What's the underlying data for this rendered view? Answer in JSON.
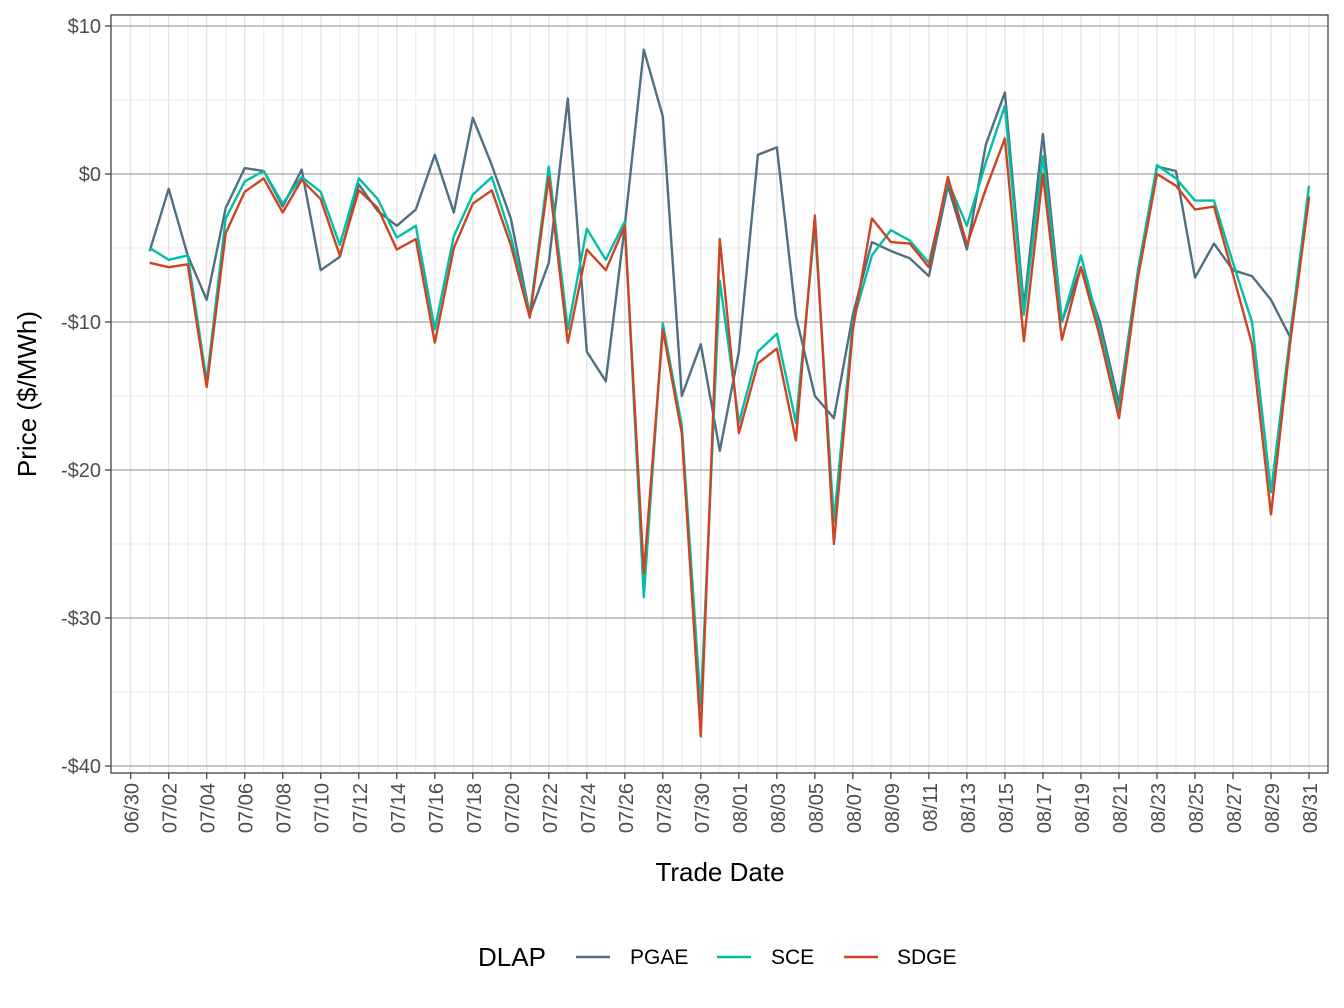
{
  "chart_data": {
    "type": "line",
    "title": "",
    "xlabel": "Trade Date",
    "ylabel": "Price ($/MWh)",
    "ylim": [
      -40,
      10
    ],
    "y_ticks": [
      10,
      0,
      -10,
      -20,
      -30,
      -40
    ],
    "y_tick_labels": [
      "$10",
      "$0",
      "-$10",
      "-$20",
      "-$30",
      "-$40"
    ],
    "x_ticks": [
      "06/30",
      "07/02",
      "07/04",
      "07/06",
      "07/08",
      "07/10",
      "07/12",
      "07/14",
      "07/16",
      "07/18",
      "07/20",
      "07/22",
      "07/24",
      "07/26",
      "07/28",
      "07/30",
      "08/01",
      "08/03",
      "08/05",
      "08/07",
      "08/09",
      "08/11",
      "08/13",
      "08/15",
      "08/17",
      "08/19",
      "08/21",
      "08/23",
      "08/25",
      "08/27",
      "08/29",
      "08/31"
    ],
    "x_start": "06/30",
    "grid": true,
    "legend": {
      "title": "DLAP",
      "position": "bottom"
    },
    "dates": [
      "07/01",
      "07/02",
      "07/03",
      "07/04",
      "07/05",
      "07/06",
      "07/07",
      "07/08",
      "07/09",
      "07/10",
      "07/11",
      "07/12",
      "07/13",
      "07/14",
      "07/15",
      "07/16",
      "07/17",
      "07/18",
      "07/19",
      "07/20",
      "07/21",
      "07/22",
      "07/23",
      "07/24",
      "07/25",
      "07/26",
      "07/27",
      "07/28",
      "07/29",
      "07/30",
      "07/31",
      "08/01",
      "08/02",
      "08/03",
      "08/04",
      "08/05",
      "08/06",
      "08/07",
      "08/08",
      "08/09",
      "08/10",
      "08/11",
      "08/12",
      "08/13",
      "08/14",
      "08/15",
      "08/16",
      "08/17",
      "08/18",
      "08/19",
      "08/20",
      "08/21",
      "08/22",
      "08/23",
      "08/24",
      "08/25",
      "08/26",
      "08/27",
      "08/28",
      "08/29",
      "08/30",
      "08/31"
    ],
    "series": [
      {
        "name": "PGAE",
        "color": "#4e7080",
        "values": [
          -5.2,
          -1.0,
          -5.5,
          -8.5,
          -2.3,
          0.4,
          0.2,
          -2.2,
          0.3,
          -6.5,
          -5.6,
          -0.7,
          -2.5,
          -3.5,
          -2.4,
          1.3,
          -2.6,
          3.8,
          0.6,
          -3.0,
          -9.5,
          -6.0,
          5.1,
          -12.0,
          -14.0,
          -3.5,
          8.4,
          3.9,
          -15.0,
          -11.5,
          -18.7,
          -12.0,
          1.3,
          1.8,
          -9.6,
          -15.0,
          -16.5,
          -9.5,
          -4.6,
          -5.2,
          -5.7,
          -6.9,
          -0.8,
          -5.1,
          2.0,
          5.5,
          -9.0,
          2.7,
          -10.0,
          -6.3,
          -10.0,
          -15.5,
          -6.5,
          0.5,
          0.2,
          -7.0,
          -4.7,
          -6.5,
          -6.9,
          -8.5,
          -11.0,
          -1.5
        ]
      },
      {
        "name": "SCE",
        "color": "#00bfa8",
        "values": [
          -5.0,
          -5.8,
          -5.5,
          -14.0,
          -3.0,
          -0.5,
          0.2,
          -2.0,
          -0.2,
          -1.2,
          -4.8,
          -0.3,
          -1.7,
          -4.3,
          -3.5,
          -10.5,
          -4.2,
          -1.4,
          -0.2,
          -4.2,
          -9.5,
          0.5,
          -10.5,
          -3.7,
          -5.8,
          -3.2,
          -28.6,
          -10.1,
          -17.0,
          -36.0,
          -7.2,
          -16.8,
          -12.0,
          -10.8,
          -16.8,
          -3.5,
          -23.5,
          -10.0,
          -5.5,
          -3.8,
          -4.5,
          -6.0,
          -0.5,
          -3.5,
          0.8,
          4.6,
          -9.5,
          1.2,
          -10.0,
          -5.5,
          -10.5,
          -16.0,
          -6.5,
          0.6,
          -0.3,
          -1.8,
          -1.8,
          -6.0,
          -10.0,
          -21.5,
          -11.0,
          -0.8
        ]
      },
      {
        "name": "SDGE",
        "color": "#cc4422",
        "values": [
          -6.0,
          -6.3,
          -6.1,
          -14.4,
          -4.0,
          -1.2,
          -0.3,
          -2.6,
          -0.4,
          -1.7,
          -5.5,
          -1.1,
          -2.3,
          -5.1,
          -4.4,
          -11.4,
          -5.0,
          -2.0,
          -1.1,
          -4.8,
          -9.7,
          -0.2,
          -11.4,
          -5.1,
          -6.5,
          -3.5,
          -27.0,
          -10.5,
          -17.5,
          -38.0,
          -4.4,
          -17.5,
          -12.8,
          -11.8,
          -18.0,
          -2.8,
          -25.0,
          -10.5,
          -3.0,
          -4.6,
          -4.7,
          -6.3,
          -0.2,
          -4.8,
          -1.0,
          2.4,
          -11.3,
          0.0,
          -11.2,
          -6.3,
          -11.0,
          -16.5,
          -7.0,
          0.0,
          -0.8,
          -2.4,
          -2.2,
          -6.8,
          -11.5,
          -23.0,
          -11.5,
          -1.6
        ]
      }
    ]
  }
}
